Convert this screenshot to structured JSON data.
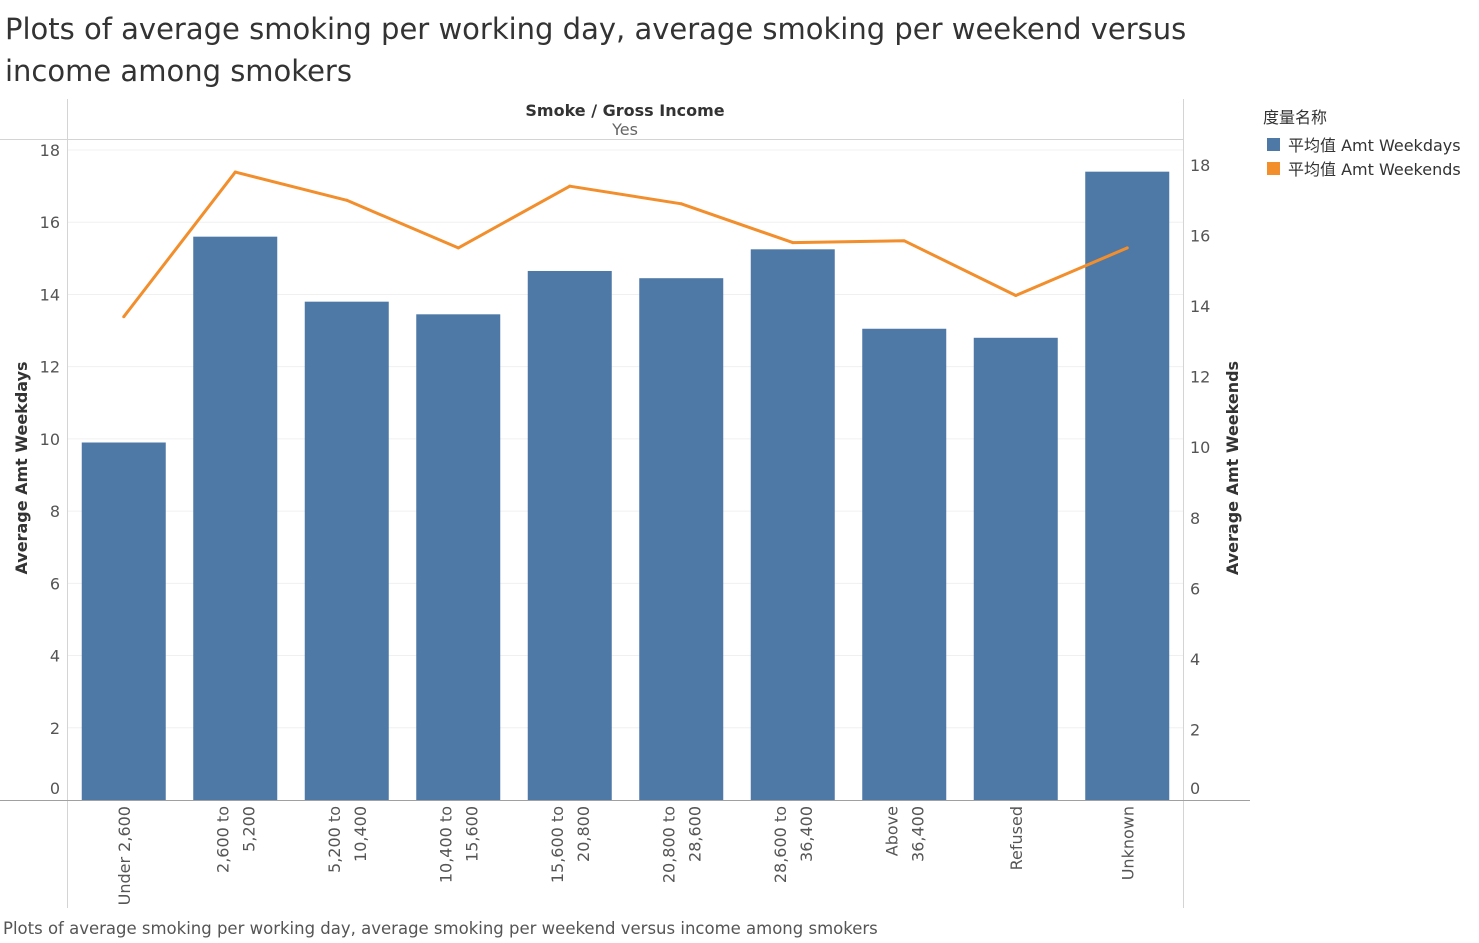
{
  "title": "Plots of average smoking per working day, average smoking per weekend versus income among smokers",
  "caption": "Plots of average smoking per working day, average smoking per weekend versus income among smokers",
  "legend": {
    "title": "度量名称",
    "items": [
      {
        "label": "平均值 Amt Weekdays",
        "color": "#4e79a7"
      },
      {
        "label": "平均值 Amt Weekends",
        "color": "#f28e2b"
      }
    ]
  },
  "chart_data": {
    "type": "bar",
    "header": {
      "title": "Smoke / Gross Income",
      "subtitle": "Yes"
    },
    "categories": [
      [
        "Under 2,600"
      ],
      [
        "2,600 to",
        "5,200"
      ],
      [
        "5,200 to",
        "10,400"
      ],
      [
        "10,400 to",
        "15,600"
      ],
      [
        "15,600 to",
        "20,800"
      ],
      [
        "20,800 to",
        "28,600"
      ],
      [
        "28,600 to",
        "36,400"
      ],
      [
        "Above",
        "36,400"
      ],
      [
        "Refused"
      ],
      [
        "Unknown"
      ]
    ],
    "series": [
      {
        "name": "平均值 Amt Weekdays",
        "kind": "bar",
        "axis": "left",
        "color": "#4e79a7",
        "values": [
          9.9,
          15.6,
          13.8,
          13.45,
          14.65,
          14.45,
          15.25,
          13.05,
          12.8,
          17.4
        ]
      },
      {
        "name": "平均值 Amt Weekends",
        "kind": "line",
        "axis": "right",
        "color": "#f28e2b",
        "values": [
          13.7,
          17.8,
          17.0,
          15.65,
          17.4,
          16.9,
          15.8,
          15.85,
          14.3,
          15.65
        ]
      }
    ],
    "ylabel": "Average Amt Weekdays",
    "ylim": [
      0,
      18
    ],
    "yticks": [
      0,
      2,
      4,
      6,
      8,
      10,
      12,
      14,
      16,
      18
    ],
    "y2label": "Average Amt Weekends",
    "y2lim": [
      0,
      18.5
    ],
    "y2ticks": [
      0,
      2,
      4,
      6,
      8,
      10,
      12,
      14,
      16,
      18
    ],
    "grid": true,
    "legend_position": "right"
  }
}
